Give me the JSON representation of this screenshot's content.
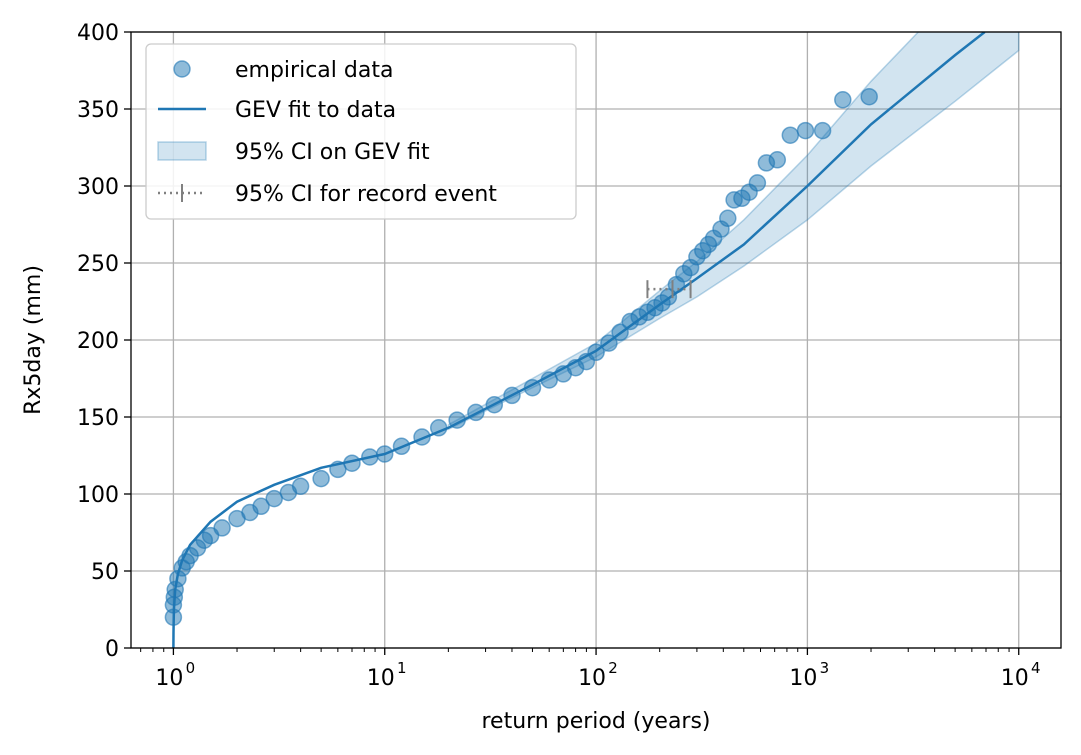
{
  "chart_data": {
    "type": "scatter",
    "xlabel": "return period (years)",
    "ylabel": "Rx5day (mm)",
    "xscale": "log",
    "xlim": [
      0.63,
      15849
    ],
    "ylim": [
      0,
      400
    ],
    "grid": true,
    "legend_position": "top-left",
    "x_ticks": [
      {
        "value": 1,
        "base": "10",
        "exp": "0"
      },
      {
        "value": 10,
        "base": "10",
        "exp": "1"
      },
      {
        "value": 100,
        "base": "10",
        "exp": "2"
      },
      {
        "value": 1000,
        "base": "10",
        "exp": "3"
      },
      {
        "value": 10000,
        "base": "10",
        "exp": "4"
      }
    ],
    "y_ticks": [
      "0",
      "50",
      "100",
      "150",
      "200",
      "250",
      "300",
      "350",
      "400"
    ],
    "colors": {
      "scatter": "#1f77b4",
      "fit": "#1f77b4",
      "ci_band": "#1f77b4",
      "record_ci": "#808080"
    },
    "legend": [
      {
        "label": "empirical data",
        "kind": "scatter"
      },
      {
        "label": "GEV fit to data",
        "kind": "line"
      },
      {
        "label": "95% CI on GEV fit",
        "kind": "band"
      },
      {
        "label": "95% CI for record event",
        "kind": "errorbar"
      }
    ],
    "series": [
      {
        "name": "GEV fit to data",
        "kind": "line",
        "x": [
          1,
          1.001,
          1.005,
          1.02,
          1.05,
          1.1,
          1.2,
          1.5,
          2,
          3,
          5,
          10,
          20,
          50,
          100,
          200,
          300,
          500,
          1000,
          2000,
          5000,
          6900
        ],
        "y": [
          0,
          10,
          25,
          38,
          48,
          57,
          67,
          82,
          95,
          106,
          117,
          126,
          143,
          171,
          193,
          223,
          240,
          262,
          300,
          340,
          385,
          400
        ]
      },
      {
        "name": "95% CI on GEV fit",
        "kind": "band",
        "x": [
          20,
          50,
          100,
          200,
          300,
          500,
          1000,
          2000,
          5000,
          10000
        ],
        "lower": [
          142,
          169,
          189,
          214,
          228,
          248,
          278,
          313,
          355,
          388
        ],
        "upper": [
          145,
          175,
          198,
          232,
          251,
          278,
          320,
          368,
          425,
          470
        ]
      },
      {
        "name": "95% CI for record event",
        "kind": "errorbar",
        "x_low": 175,
        "x_mid": 230,
        "x_high": 280,
        "y": 233
      },
      {
        "name": "empirical data",
        "kind": "scatter",
        "x": [
          1.0,
          1.0,
          1.01,
          1.02,
          1.05,
          1.1,
          1.15,
          1.2,
          1.3,
          1.4,
          1.5,
          1.7,
          2.0,
          2.3,
          2.6,
          3.0,
          3.5,
          4.0,
          5.0,
          6.0,
          7.0,
          8.5,
          10,
          12,
          15,
          18,
          22,
          27,
          33,
          40,
          50,
          60,
          70,
          80,
          90,
          100,
          115,
          130,
          145,
          160,
          175,
          190,
          205,
          220,
          240,
          260,
          280,
          300,
          320,
          340,
          360,
          390,
          420,
          450,
          490,
          530,
          580,
          640,
          720,
          830,
          980,
          1180,
          1470,
          1960
        ],
        "y": [
          20,
          28,
          33,
          38,
          45,
          52,
          56,
          60,
          65,
          70,
          73,
          78,
          84,
          88,
          92,
          97,
          101,
          105,
          110,
          116,
          120,
          124,
          126,
          131,
          137,
          143,
          148,
          153,
          158,
          164,
          169,
          174,
          178,
          182,
          186,
          192,
          198,
          205,
          212,
          215,
          218,
          221,
          224,
          228,
          236,
          243,
          247,
          254,
          258,
          262,
          266,
          272,
          279,
          291,
          292,
          296,
          302,
          315,
          317,
          333,
          336,
          336,
          356,
          358
        ]
      }
    ]
  }
}
